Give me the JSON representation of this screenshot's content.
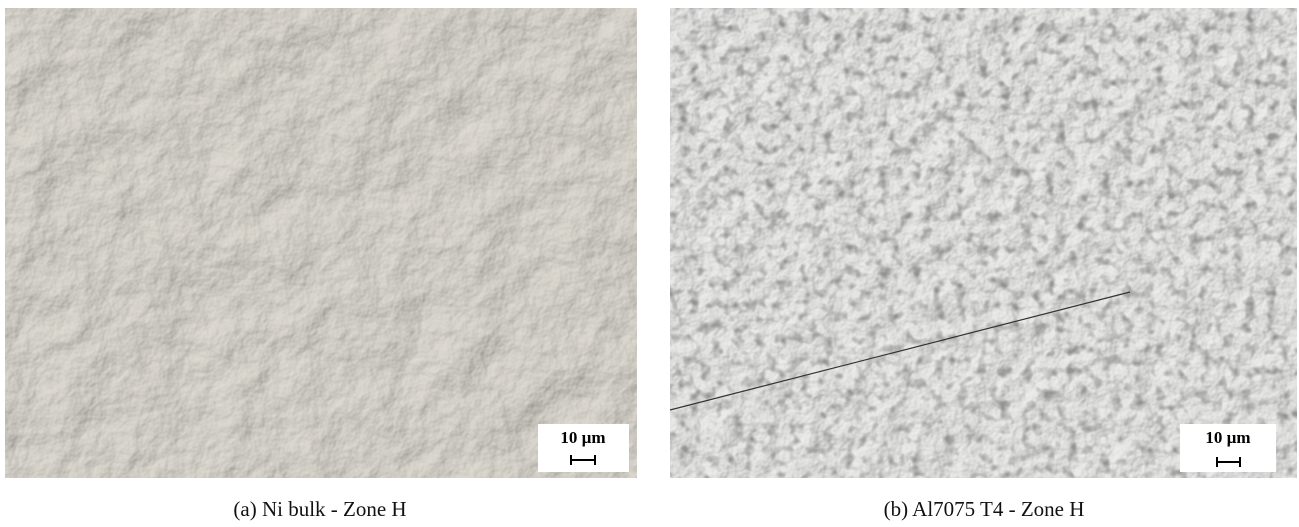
{
  "panels": [
    {
      "caption": "(a) Ni bulk - Zone H",
      "scale_label": "10 µm"
    },
    {
      "caption": "(b) Al7075 T4 - Zone H",
      "scale_label": "10 µm"
    }
  ]
}
